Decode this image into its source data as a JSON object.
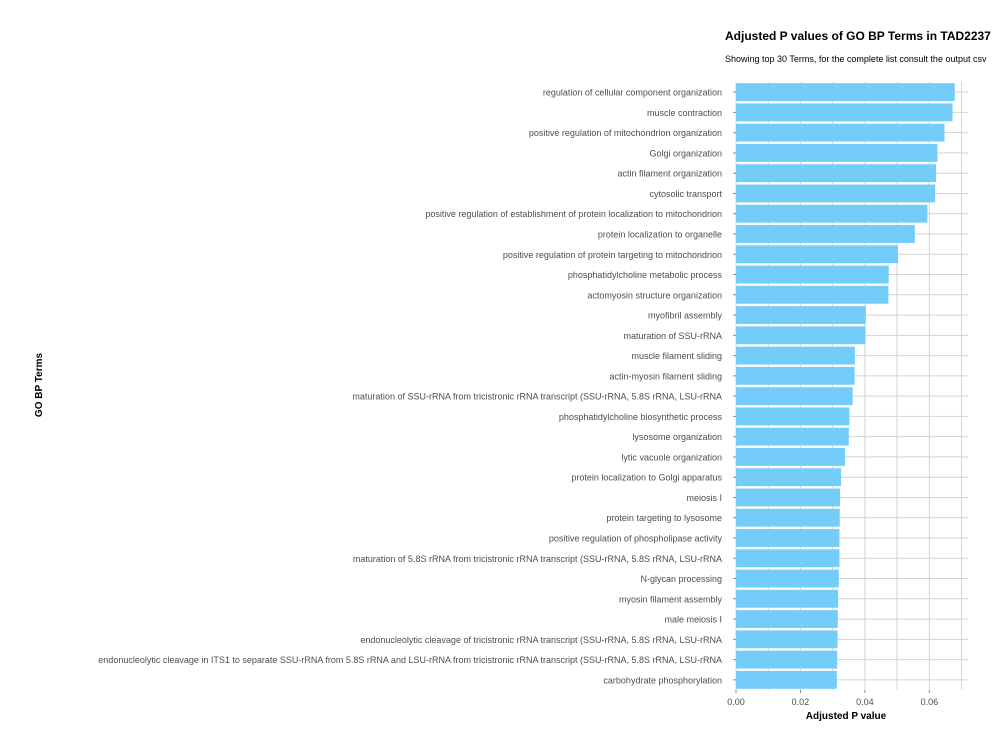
{
  "chart_data": {
    "type": "bar",
    "orientation": "horizontal",
    "title": "Adjusted P values of GO BP Terms in TAD2237",
    "subtitle": "Showing top 30 Terms, for the complete list consult the output csv",
    "xlabel": "Adjusted P value",
    "ylabel": "GO BP Terms",
    "xlim": [
      0,
      0.072
    ],
    "xticks": [
      0.0,
      0.02,
      0.04,
      0.06
    ],
    "xtick_labels": [
      "0.00",
      "0.02",
      "0.04",
      "0.06"
    ],
    "grid": true,
    "bar_color": "#74CCF8",
    "categories": [
      "regulation of cellular component organization",
      "muscle contraction",
      "positive regulation of mitochondrion organization",
      "Golgi organization",
      "actin filament organization",
      "cytosolic transport",
      "positive regulation of establishment of protein localization to mitochondrion",
      "protein localization to organelle",
      "positive regulation of protein targeting to mitochondrion",
      "phosphatidylcholine metabolic process",
      "actomyosin structure organization",
      "myofibril assembly",
      "maturation of SSU-rRNA",
      "muscle filament sliding",
      "actin-myosin filament sliding",
      "maturation of SSU-rRNA from tricistronic rRNA transcript (SSU-rRNA, 5.8S rRNA, LSU-rRNA",
      "phosphatidylcholine biosynthetic process",
      "lysosome organization",
      "lytic vacuole organization",
      "protein localization to Golgi apparatus",
      "meiosis I",
      "protein targeting to lysosome",
      "positive regulation of phospholipase activity",
      "maturation of 5.8S rRNA from tricistronic rRNA transcript (SSU-rRNA, 5.8S rRNA, LSU-rRNA",
      "N-glycan processing",
      "myosin filament assembly",
      "male meiosis I",
      "endonucleolytic cleavage of tricistronic rRNA transcript (SSU-rRNA, 5.8S rRNA, LSU-rRNA",
      "endonucleolytic cleavage in ITS1 to separate SSU-rRNA from 5.8S rRNA and LSU-rRNA from tricistronic rRNA transcript (SSU-rRNA, 5.8S rRNA, LSU-rRNA",
      "carbohydrate phosphorylation"
    ],
    "values": [
      0.0679,
      0.0672,
      0.0647,
      0.0625,
      0.0621,
      0.0618,
      0.0594,
      0.0555,
      0.0503,
      0.0474,
      0.0473,
      0.0403,
      0.0402,
      0.0369,
      0.0368,
      0.0362,
      0.0352,
      0.035,
      0.0338,
      0.0326,
      0.0323,
      0.0322,
      0.0321,
      0.0321,
      0.0319,
      0.0317,
      0.0316,
      0.0315,
      0.0314,
      0.0313
    ]
  }
}
